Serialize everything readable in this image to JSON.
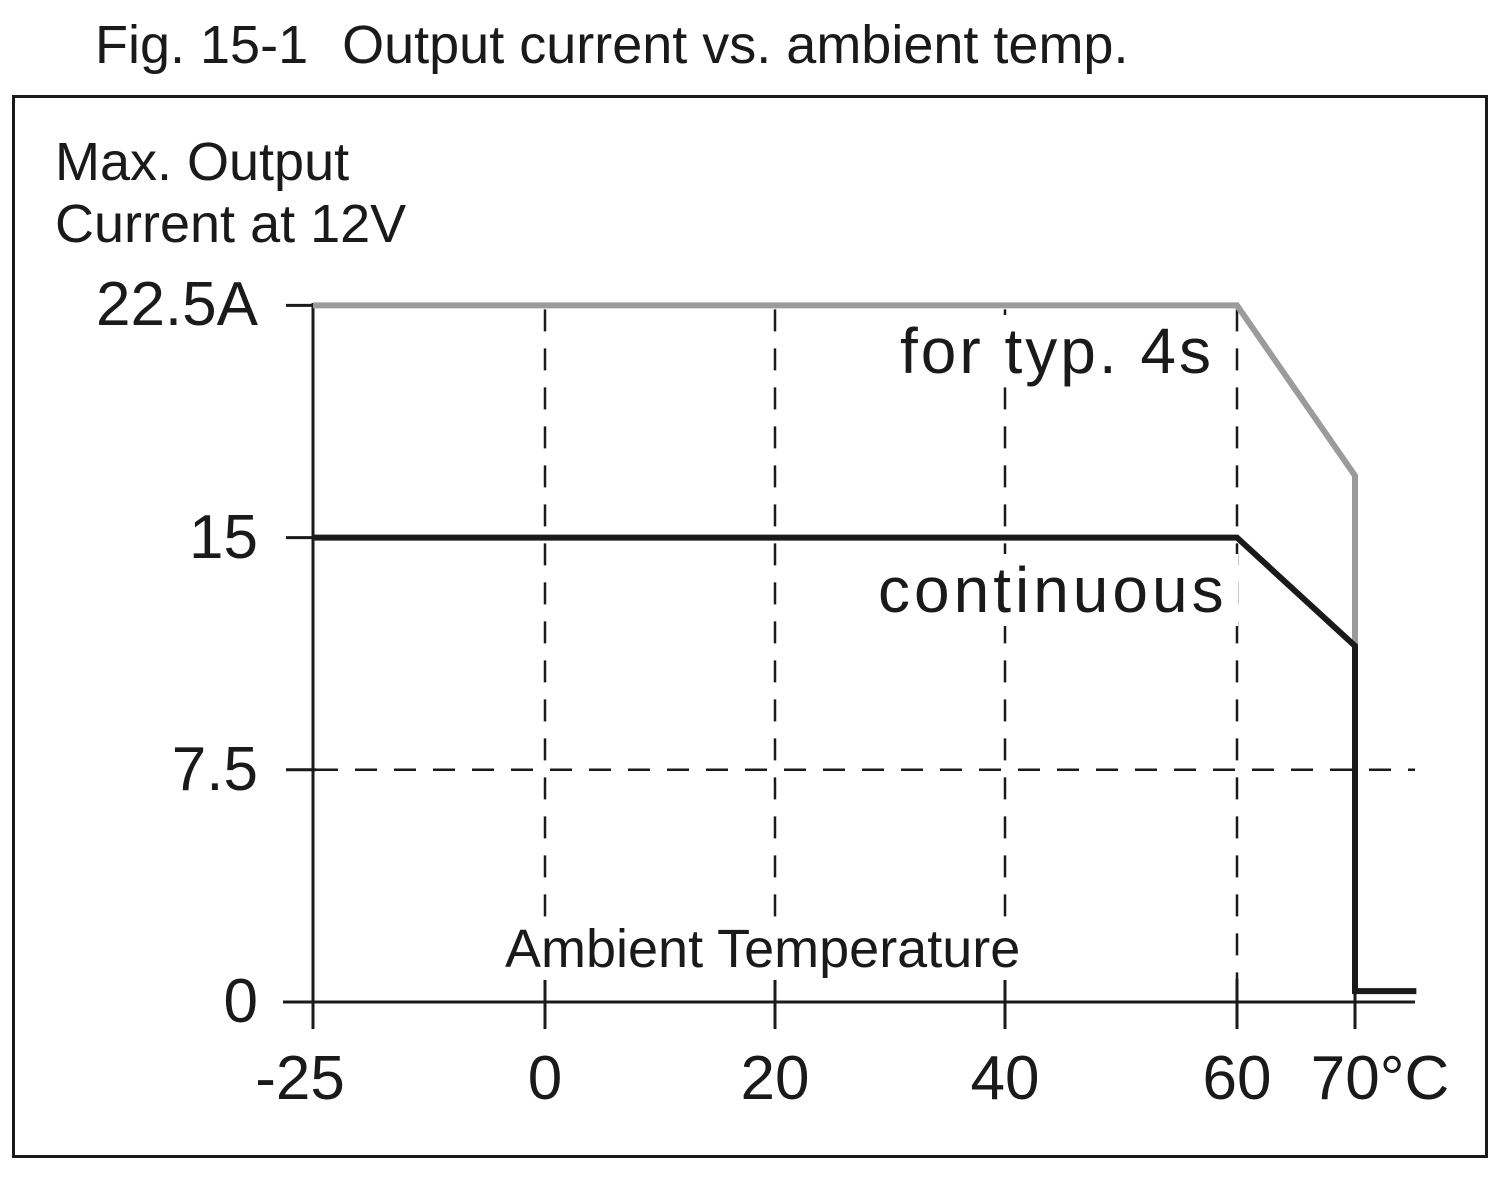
{
  "figure": {
    "figure_label": "Fig. 15-1",
    "title": "Output current vs. ambient temp."
  },
  "colors": {
    "ink": "#1a1a1a",
    "gray_series": "#9b9b9b",
    "background": "#ffffff"
  },
  "chart_data": {
    "type": "line",
    "title": "Output current vs. ambient temp.",
    "y_axis_title_line1": "Max. Output",
    "y_axis_title_line2": "Current at 12V",
    "x_axis_label": "Ambient Temperature",
    "xlabel_unit": "°C",
    "ylabel_unit": "A",
    "xlim": [
      -25,
      75.5
    ],
    "ylim": [
      0,
      22.5
    ],
    "grid": "dashed",
    "legend_position": "inline-annotations",
    "x_ticks": [
      {
        "value": -25,
        "label": "-25"
      },
      {
        "value": 0,
        "label": "0"
      },
      {
        "value": 20,
        "label": "20"
      },
      {
        "value": 40,
        "label": "40"
      },
      {
        "value": 60,
        "label": "60"
      },
      {
        "value": 70,
        "label": "70°C"
      }
    ],
    "y_ticks": [
      {
        "value": 22.5,
        "label": "22.5A"
      },
      {
        "value": 15,
        "label": "15"
      },
      {
        "value": 7.5,
        "label": "7.5"
      },
      {
        "value": 0,
        "label": "0"
      }
    ],
    "x_gridlines": [
      0,
      20,
      40,
      60
    ],
    "y_gridlines": [
      7.5
    ],
    "series": [
      {
        "name": "for typ. 4s",
        "color": "#9b9b9b",
        "points": [
          [
            -25,
            22.5
          ],
          [
            60,
            22.5
          ],
          [
            70,
            17
          ],
          [
            70,
            11.5
          ]
        ]
      },
      {
        "name": "continuous",
        "color": "#1a1a1a",
        "points": [
          [
            -25,
            15
          ],
          [
            60,
            15
          ],
          [
            70,
            11.5
          ],
          [
            70,
            0.35
          ],
          [
            75.2,
            0.35
          ]
        ]
      }
    ]
  }
}
